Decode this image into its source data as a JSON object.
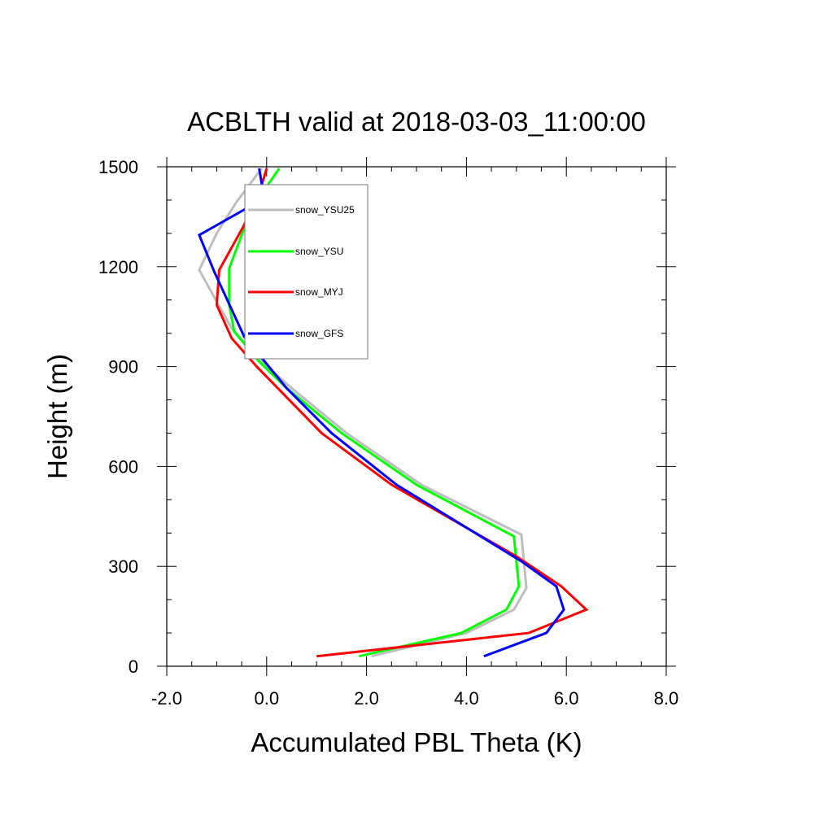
{
  "chart_data": {
    "type": "line",
    "title": "ACBLTH valid at 2018-03-03_11:00:00",
    "xlabel": "Accumulated PBL Theta (K)",
    "ylabel": "Height (m)",
    "xlim": [
      -2.0,
      8.0
    ],
    "ylim": [
      0,
      1500
    ],
    "x_ticks": [
      "-2.0",
      "0.0",
      "2.0",
      "4.0",
      "6.0",
      "8.0"
    ],
    "y_ticks": [
      "0",
      "300",
      "600",
      "900",
      "1200",
      "1500"
    ],
    "grid": false,
    "legend_position": "top-left inside",
    "series": [
      {
        "name": "snow_YSU25",
        "color": "#bebebe",
        "points": [
          [
            2.1,
            30
          ],
          [
            4.0,
            100
          ],
          [
            4.95,
            170
          ],
          [
            5.2,
            235
          ],
          [
            5.1,
            395
          ],
          [
            3.1,
            545
          ],
          [
            1.6,
            700
          ],
          [
            0.5,
            835
          ],
          [
            -0.1,
            915
          ],
          [
            -0.7,
            1015
          ],
          [
            -1.0,
            1095
          ],
          [
            -1.35,
            1190
          ],
          [
            -1.0,
            1300
          ],
          [
            -0.6,
            1395
          ],
          [
            -0.1,
            1495
          ]
        ]
      },
      {
        "name": "snow_YSU",
        "color": "#00ff00",
        "points": [
          [
            1.85,
            30
          ],
          [
            3.9,
            100
          ],
          [
            4.8,
            170
          ],
          [
            5.05,
            240
          ],
          [
            4.95,
            390
          ],
          [
            3.0,
            545
          ],
          [
            1.5,
            700
          ],
          [
            0.4,
            835
          ],
          [
            -0.15,
            915
          ],
          [
            -0.65,
            1005
          ],
          [
            -0.75,
            1085
          ],
          [
            -0.75,
            1195
          ],
          [
            -0.3,
            1375
          ],
          [
            0.25,
            1495
          ]
        ]
      },
      {
        "name": "snow_MYJ",
        "color": "#ff0000",
        "points": [
          [
            1.0,
            30
          ],
          [
            5.25,
            100
          ],
          [
            6.4,
            170
          ],
          [
            5.9,
            240
          ],
          [
            5.0,
            330
          ],
          [
            2.5,
            545
          ],
          [
            1.1,
            700
          ],
          [
            -0.2,
            900
          ],
          [
            -0.7,
            985
          ],
          [
            -1.0,
            1085
          ],
          [
            -0.95,
            1190
          ],
          [
            -0.45,
            1325
          ],
          [
            -0.1,
            1445
          ],
          [
            0.0,
            1495
          ]
        ]
      },
      {
        "name": "snow_GFS",
        "color": "#0000ff",
        "points": [
          [
            4.35,
            30
          ],
          [
            5.6,
            100
          ],
          [
            5.95,
            170
          ],
          [
            5.8,
            240
          ],
          [
            5.1,
            315
          ],
          [
            2.6,
            545
          ],
          [
            1.3,
            700
          ],
          [
            0.4,
            835
          ],
          [
            -0.45,
            990
          ],
          [
            -1.05,
            1185
          ],
          [
            -1.35,
            1295
          ],
          [
            -0.05,
            1405
          ],
          [
            -0.15,
            1495
          ]
        ]
      }
    ]
  }
}
